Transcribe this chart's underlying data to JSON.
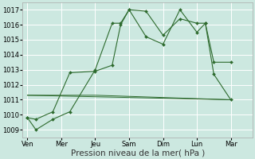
{
  "background_color": "#cce8e0",
  "grid_color": "#ffffff",
  "line_color": "#2d6a2d",
  "xlabel": "Pression niveau de la mer( hPa )",
  "xlabel_fontsize": 7.5,
  "ylim": [
    1008.5,
    1017.5
  ],
  "yticks": [
    1009,
    1010,
    1011,
    1012,
    1013,
    1014,
    1015,
    1016,
    1017
  ],
  "xtick_labels": [
    "Ven",
    "Mer",
    "Jeu",
    "Sam",
    "Dim",
    "Lun",
    "Mar"
  ],
  "xtick_positions": [
    0,
    2,
    4,
    6,
    8,
    10,
    12
  ],
  "xlim": [
    -0.3,
    13.3
  ],
  "series1_x": [
    0,
    0.5,
    1.5,
    2.5,
    4,
    5,
    5.5,
    6,
    7,
    8,
    9,
    10,
    10.5,
    11,
    12
  ],
  "series1_y": [
    1009.8,
    1009.0,
    1009.7,
    1010.2,
    1013.0,
    1016.1,
    1016.1,
    1017.0,
    1016.9,
    1015.3,
    1016.4,
    1016.1,
    1016.1,
    1013.5,
    1013.5
  ],
  "series2_x": [
    0,
    0.5,
    1.5,
    2.5,
    4,
    5,
    5.5,
    6,
    7,
    8,
    9,
    10,
    10.5,
    11,
    12
  ],
  "series2_y": [
    1009.8,
    1009.7,
    1010.2,
    1012.8,
    1012.9,
    1013.3,
    1016.0,
    1017.0,
    1015.2,
    1014.7,
    1017.0,
    1015.5,
    1016.1,
    1012.7,
    1011.0
  ],
  "series3_x": [
    0,
    12
  ],
  "series3_y": [
    1011.3,
    1011.0
  ],
  "series4_x": [
    0,
    4,
    12
  ],
  "series4_y": [
    1011.3,
    1011.3,
    1011.0
  ],
  "ytick_fontsize": 6,
  "xtick_fontsize": 6
}
